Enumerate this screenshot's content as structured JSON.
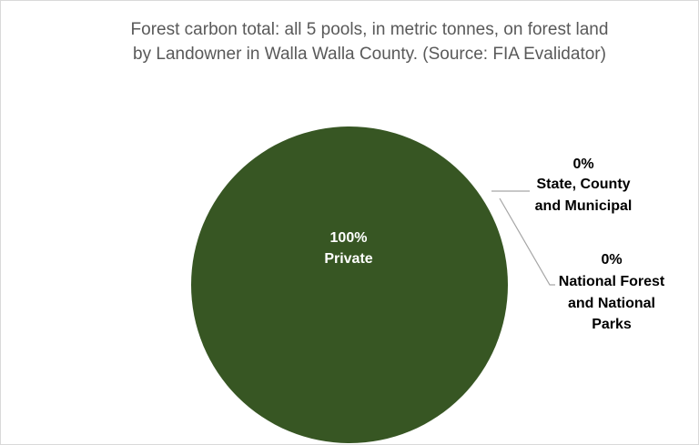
{
  "chart_data": {
    "type": "pie",
    "title_lines": [
      "Forest carbon total: all 5 pools, in metric tonnes, on forest land",
      "by Landowner in Walla Walla County.  (Source: FIA Evalidator)"
    ],
    "slices": [
      {
        "category": "Private",
        "percent_label": "100%",
        "value": 100,
        "color": "#375623"
      },
      {
        "category": "State, County and Municipal",
        "percent_label": "0%",
        "value": 0,
        "color": "#375623"
      },
      {
        "category": "National Forest and National Parks",
        "percent_label": "0%",
        "value": 0,
        "color": "#375623"
      }
    ],
    "label_color_inside": "#ffffff",
    "label_color_outside": "#000000",
    "leader_line_color": "#a6a6a6"
  }
}
